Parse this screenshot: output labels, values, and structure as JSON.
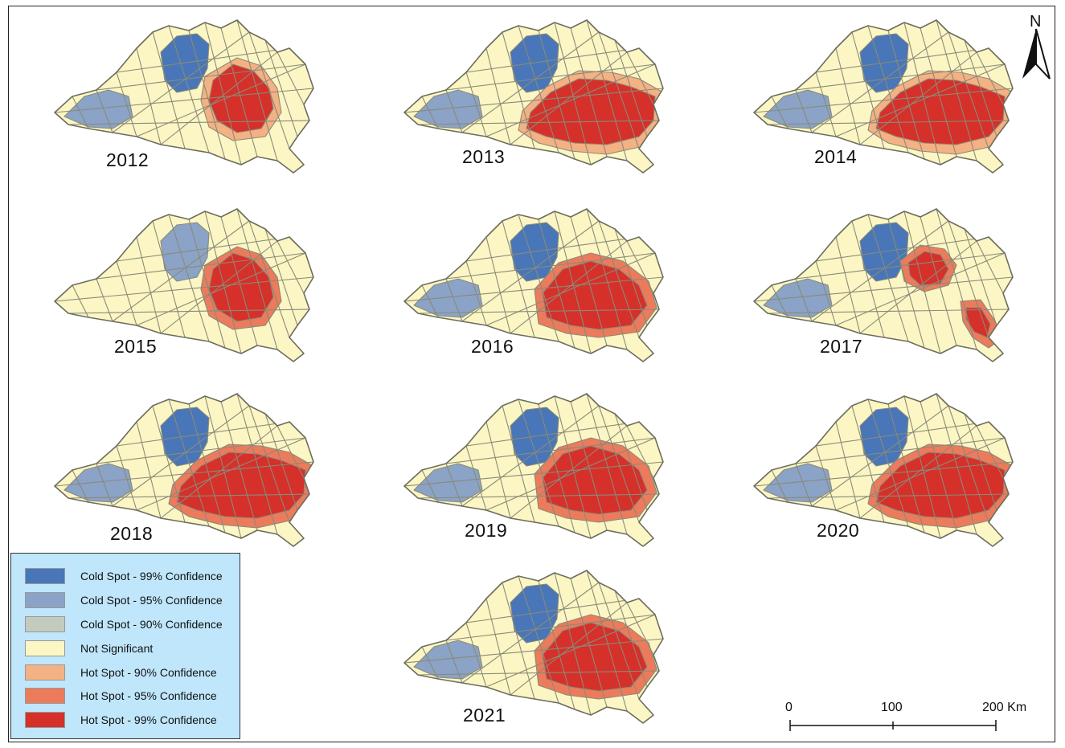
{
  "north_label": "N",
  "years": [
    "2012",
    "2013",
    "2014",
    "2015",
    "2016",
    "2017",
    "2018",
    "2019",
    "2020",
    "2021"
  ],
  "legend": [
    {
      "label": "Cold Spot - 99% Confidence",
      "color": "#4876b8"
    },
    {
      "label": "Cold Spot - 95% Confidence",
      "color": "#8aa3c7"
    },
    {
      "label": "Cold Spot - 90% Confidence",
      "color": "#c3cbbf"
    },
    {
      "label": "Not Significant",
      "color": "#fbf6c4"
    },
    {
      "label": "Hot Spot - 90% Confidence",
      "color": "#f4b183"
    },
    {
      "label": "Hot Spot - 95% Confidence",
      "color": "#ec7b5c"
    },
    {
      "label": "Hot Spot - 99% Confidence",
      "color": "#d6302a"
    }
  ],
  "scale": {
    "labels": [
      "0",
      "100",
      "200 Km"
    ]
  },
  "colors": {
    "cold99": "#4876b8",
    "cold95": "#8aa3c7",
    "cold90": "#c3cbbf",
    "ns": "#fbf6c4",
    "hot90": "#f4b183",
    "hot95": "#ec7b5c",
    "hot99": "#d6302a"
  },
  "maps": [
    {
      "year": "2012",
      "north_cold": "cold99",
      "west_cold": "cold95",
      "hot_core": "hot99",
      "hot_ring": "hot90",
      "hot_extent": "small"
    },
    {
      "year": "2013",
      "north_cold": "cold99",
      "west_cold": "cold95",
      "hot_core": "hot99",
      "hot_ring": "hot90",
      "hot_extent": "large"
    },
    {
      "year": "2014",
      "north_cold": "cold99",
      "west_cold": "cold95",
      "hot_core": "hot99",
      "hot_ring": "hot90",
      "hot_extent": "large"
    },
    {
      "year": "2015",
      "north_cold": "cold95",
      "west_cold": "ns",
      "hot_core": "hot99",
      "hot_ring": "hot95",
      "hot_extent": "small"
    },
    {
      "year": "2016",
      "north_cold": "cold99",
      "west_cold": "cold95",
      "hot_core": "hot99",
      "hot_ring": "hot95",
      "hot_extent": "medium"
    },
    {
      "year": "2017",
      "north_cold": "cold99",
      "west_cold": "cold95",
      "hot_core": "hot99",
      "hot_ring": "hot95",
      "hot_extent": "split"
    },
    {
      "year": "2018",
      "north_cold": "cold99",
      "west_cold": "cold95",
      "hot_core": "hot99",
      "hot_ring": "hot95",
      "hot_extent": "large"
    },
    {
      "year": "2019",
      "north_cold": "cold99",
      "west_cold": "cold95",
      "hot_core": "hot99",
      "hot_ring": "hot95",
      "hot_extent": "medium"
    },
    {
      "year": "2020",
      "north_cold": "cold99",
      "west_cold": "cold95",
      "hot_core": "hot99",
      "hot_ring": "hot95",
      "hot_extent": "large"
    },
    {
      "year": "2021",
      "north_cold": "cold99",
      "west_cold": "cold95",
      "hot_core": "hot99",
      "hot_ring": "hot95",
      "hot_extent": "medium"
    }
  ]
}
